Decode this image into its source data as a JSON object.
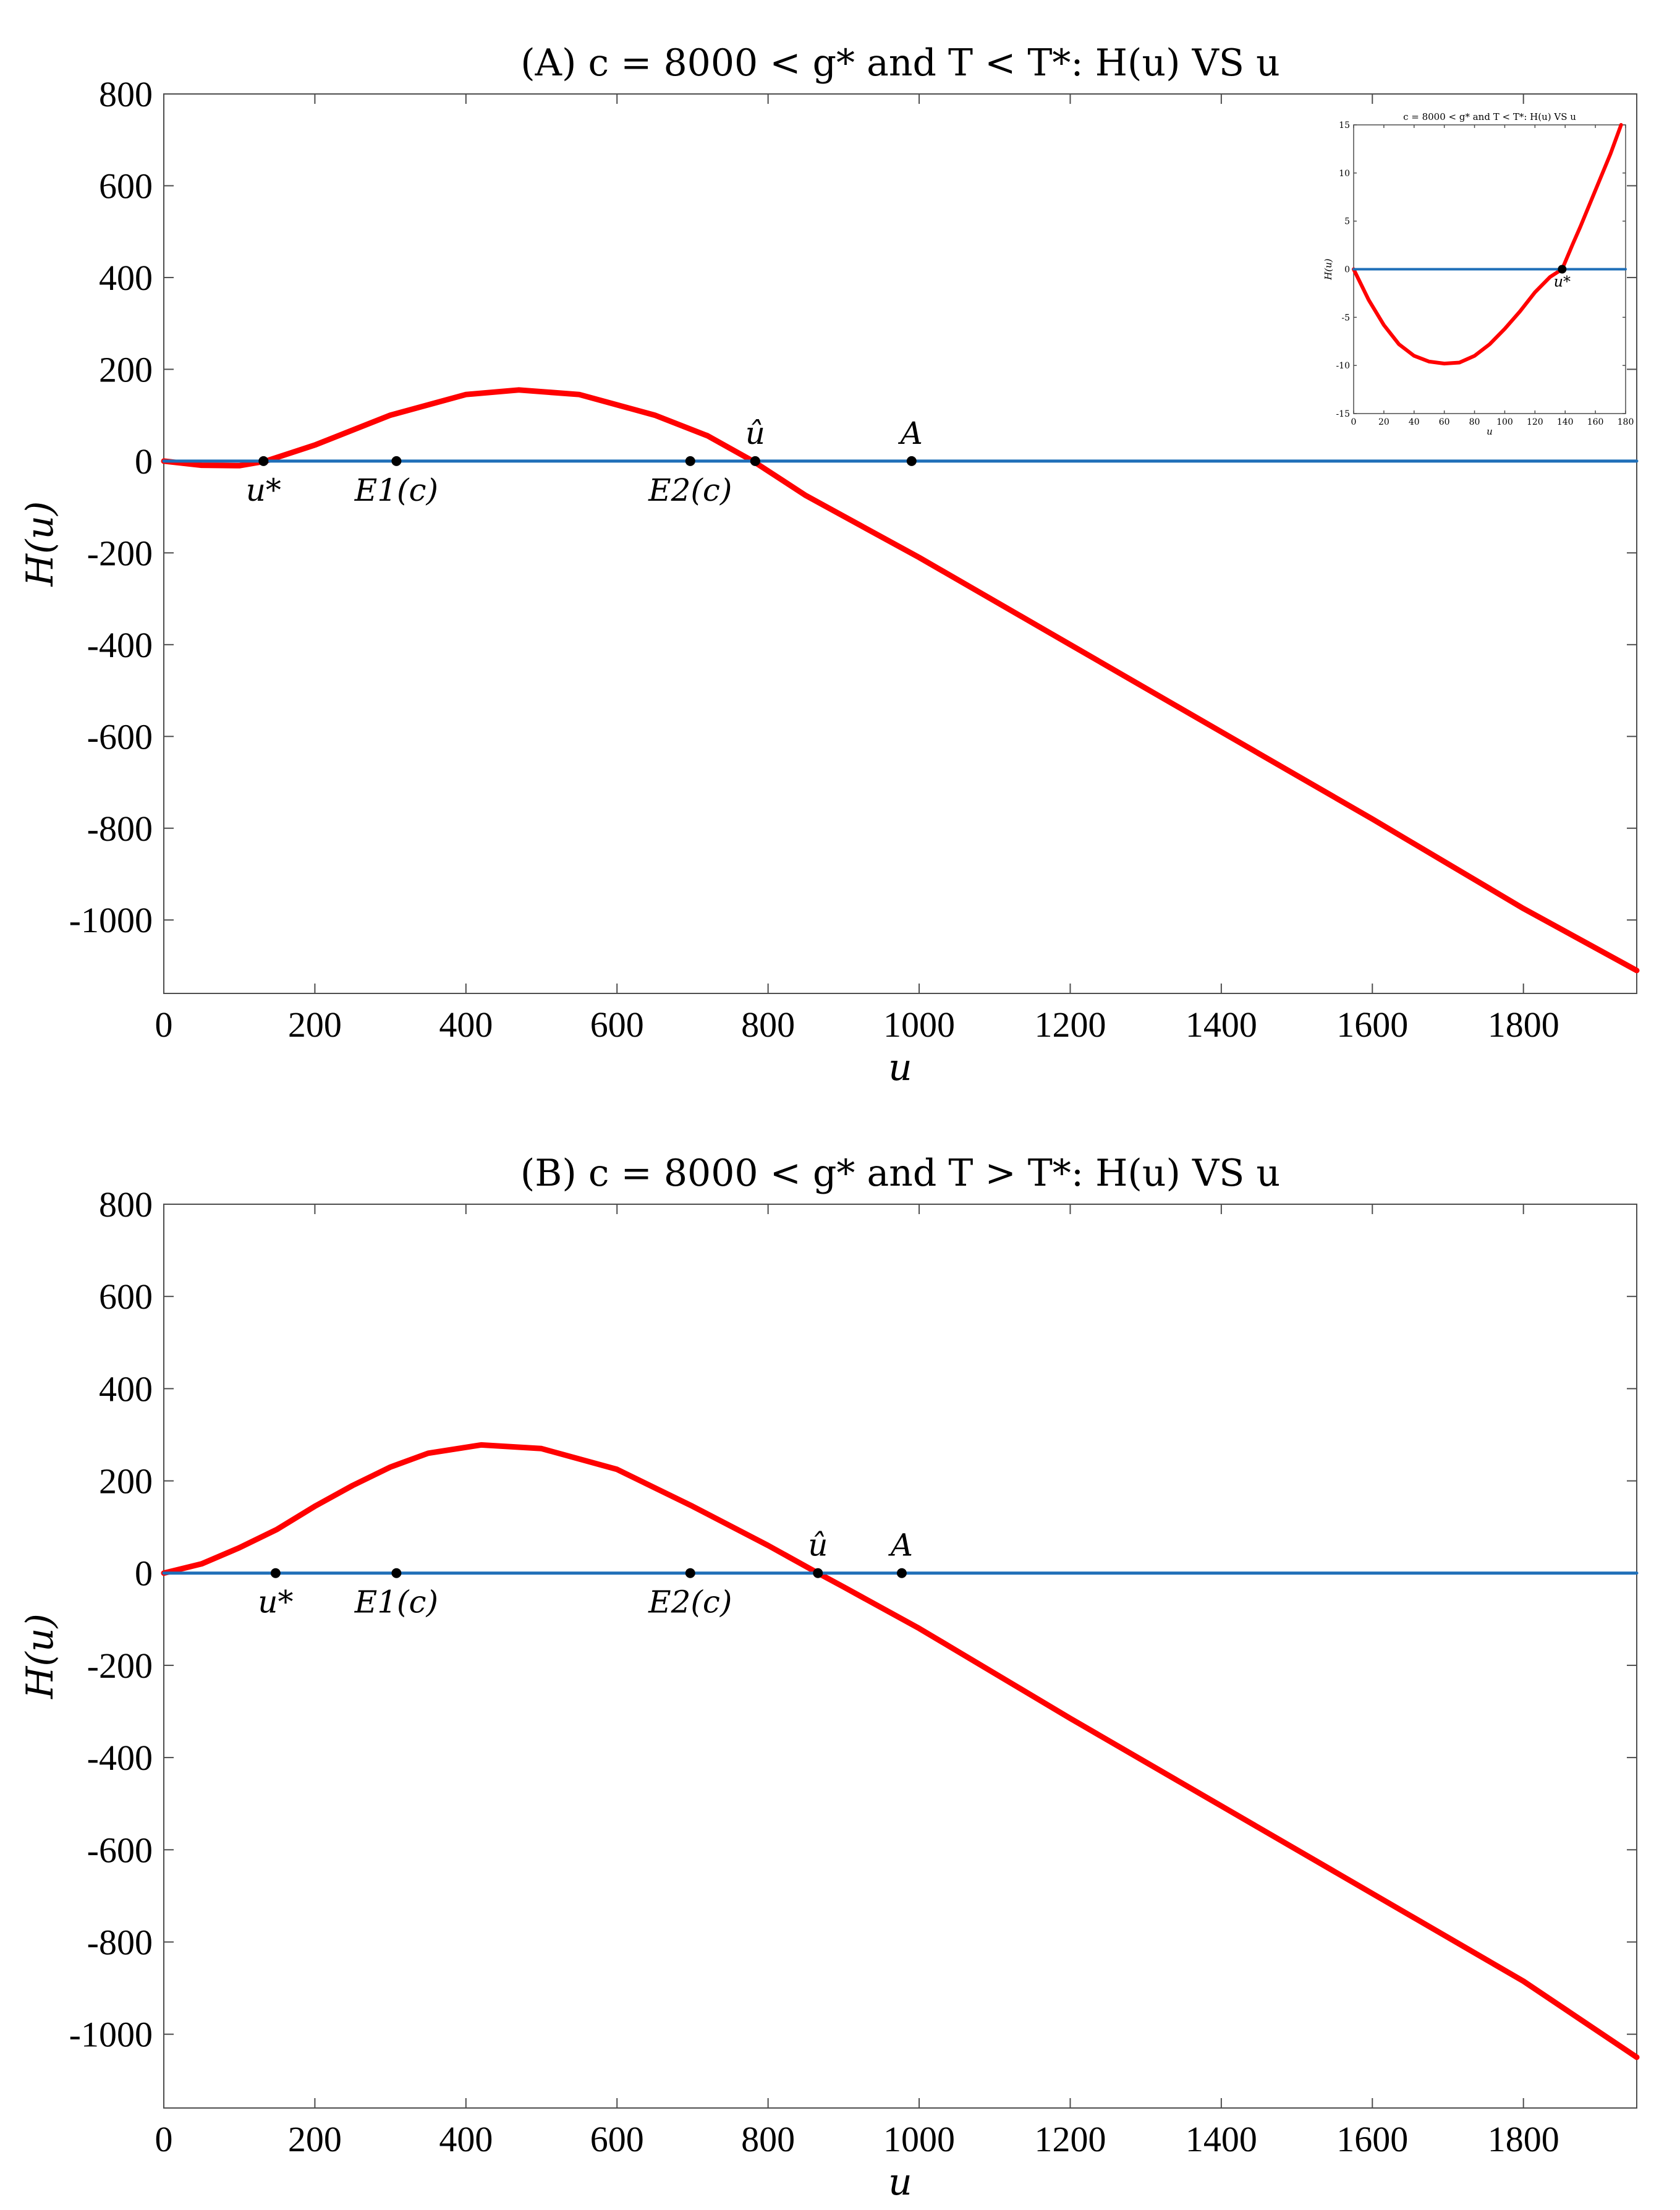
{
  "chart_data": [
    {
      "type": "line",
      "title": "(A) c = 8000 < g* and T < T*: H(u) VS u",
      "xlabel": "u",
      "ylabel": "H(u)",
      "xlim": [
        0,
        1950
      ],
      "ylim": [
        -1160,
        800
      ],
      "xticks": [
        0,
        200,
        400,
        600,
        800,
        1000,
        1200,
        1400,
        1600,
        1800
      ],
      "yticks": [
        800,
        600,
        400,
        200,
        0,
        -200,
        -400,
        -600,
        -800,
        -1000
      ],
      "series": [
        {
          "name": "H(u)",
          "color": "#ff0000",
          "points": [
            [
              0,
              0
            ],
            [
              50,
              -9
            ],
            [
              100,
              -10
            ],
            [
              135,
              0
            ],
            [
              200,
              35
            ],
            [
              300,
              100
            ],
            [
              400,
              145
            ],
            [
              470,
              155
            ],
            [
              550,
              145
            ],
            [
              650,
              100
            ],
            [
              720,
              55
            ],
            [
              780,
              0
            ],
            [
              850,
              -75
            ],
            [
              1000,
              -210
            ],
            [
              1200,
              -400
            ],
            [
              1400,
              -590
            ],
            [
              1600,
              -780
            ],
            [
              1800,
              -975
            ],
            [
              1950,
              -1110
            ]
          ]
        },
        {
          "name": "zero line",
          "color": "#1f6fb8",
          "points": [
            [
              0,
              0
            ],
            [
              1950,
              0
            ]
          ]
        }
      ],
      "markers": [
        {
          "label": "u*",
          "x": 132,
          "y": 0,
          "label_pos": "below"
        },
        {
          "label": "E1(c)",
          "x": 308,
          "y": 0,
          "label_pos": "below"
        },
        {
          "label": "E2(c)",
          "x": 697,
          "y": 0,
          "label_pos": "below"
        },
        {
          "label": "û",
          "x": 783,
          "y": 0,
          "label_pos": "above"
        },
        {
          "label": "A",
          "x": 990,
          "y": 0,
          "label_pos": "above"
        }
      ],
      "inset": {
        "type": "line",
        "title": "c = 8000 < g* and T < T*: H(u) VS u",
        "xlabel": "u",
        "ylabel": "H(u)",
        "xlim": [
          0,
          180
        ],
        "ylim": [
          -15,
          15
        ],
        "xticks": [
          0,
          20,
          40,
          60,
          80,
          100,
          120,
          140,
          160,
          180
        ],
        "yticks": [
          15,
          10,
          5,
          0,
          -5,
          -10,
          -15
        ],
        "series": [
          {
            "name": "H(u)",
            "color": "#ff0000",
            "points": [
              [
                0,
                0
              ],
              [
                10,
                -3.2
              ],
              [
                20,
                -5.8
              ],
              [
                30,
                -7.8
              ],
              [
                40,
                -9.0
              ],
              [
                50,
                -9.6
              ],
              [
                60,
                -9.8
              ],
              [
                70,
                -9.7
              ],
              [
                80,
                -9.0
              ],
              [
                90,
                -7.8
              ],
              [
                100,
                -6.2
              ],
              [
                110,
                -4.4
              ],
              [
                120,
                -2.4
              ],
              [
                130,
                -0.8
              ],
              [
                138,
                0
              ],
              [
                145,
                2.6
              ],
              [
                150,
                4.4
              ],
              [
                160,
                8.2
              ],
              [
                170,
                12.0
              ],
              [
                177,
                15.0
              ]
            ]
          },
          {
            "name": "zero line",
            "color": "#1f6fb8",
            "points": [
              [
                0,
                0
              ],
              [
                180,
                0
              ]
            ]
          }
        ],
        "markers": [
          {
            "label": "u*",
            "x": 138,
            "y": 0,
            "label_pos": "below"
          }
        ]
      }
    },
    {
      "type": "line",
      "title": "(B) c = 8000 < g* and T > T*: H(u) VS u",
      "xlabel": "u",
      "ylabel": "H(u)",
      "xlim": [
        0,
        1950
      ],
      "ylim": [
        -1160,
        800
      ],
      "xticks": [
        0,
        200,
        400,
        600,
        800,
        1000,
        1200,
        1400,
        1600,
        1800
      ],
      "yticks": [
        800,
        600,
        400,
        200,
        0,
        -200,
        -400,
        -600,
        -800,
        -1000
      ],
      "series": [
        {
          "name": "H(u)",
          "color": "#ff0000",
          "points": [
            [
              0,
              0
            ],
            [
              50,
              20
            ],
            [
              100,
              55
            ],
            [
              150,
              95
            ],
            [
              200,
              145
            ],
            [
              250,
              190
            ],
            [
              300,
              230
            ],
            [
              350,
              260
            ],
            [
              420,
              278
            ],
            [
              500,
              270
            ],
            [
              600,
              225
            ],
            [
              700,
              145
            ],
            [
              800,
              60
            ],
            [
              866,
              0
            ],
            [
              900,
              -30
            ],
            [
              1000,
              -120
            ],
            [
              1200,
              -315
            ],
            [
              1400,
              -505
            ],
            [
              1600,
              -695
            ],
            [
              1800,
              -885
            ],
            [
              1950,
              -1050
            ]
          ]
        },
        {
          "name": "zero line",
          "color": "#1f6fb8",
          "points": [
            [
              0,
              0
            ],
            [
              1950,
              0
            ]
          ]
        }
      ],
      "markers": [
        {
          "label": "u*",
          "x": 148,
          "y": 0,
          "label_pos": "below"
        },
        {
          "label": "E1(c)",
          "x": 308,
          "y": 0,
          "label_pos": "below"
        },
        {
          "label": "E2(c)",
          "x": 697,
          "y": 0,
          "label_pos": "below"
        },
        {
          "label": "û",
          "x": 866,
          "y": 0,
          "label_pos": "above"
        },
        {
          "label": "A",
          "x": 977,
          "y": 0,
          "label_pos": "above"
        }
      ]
    }
  ]
}
